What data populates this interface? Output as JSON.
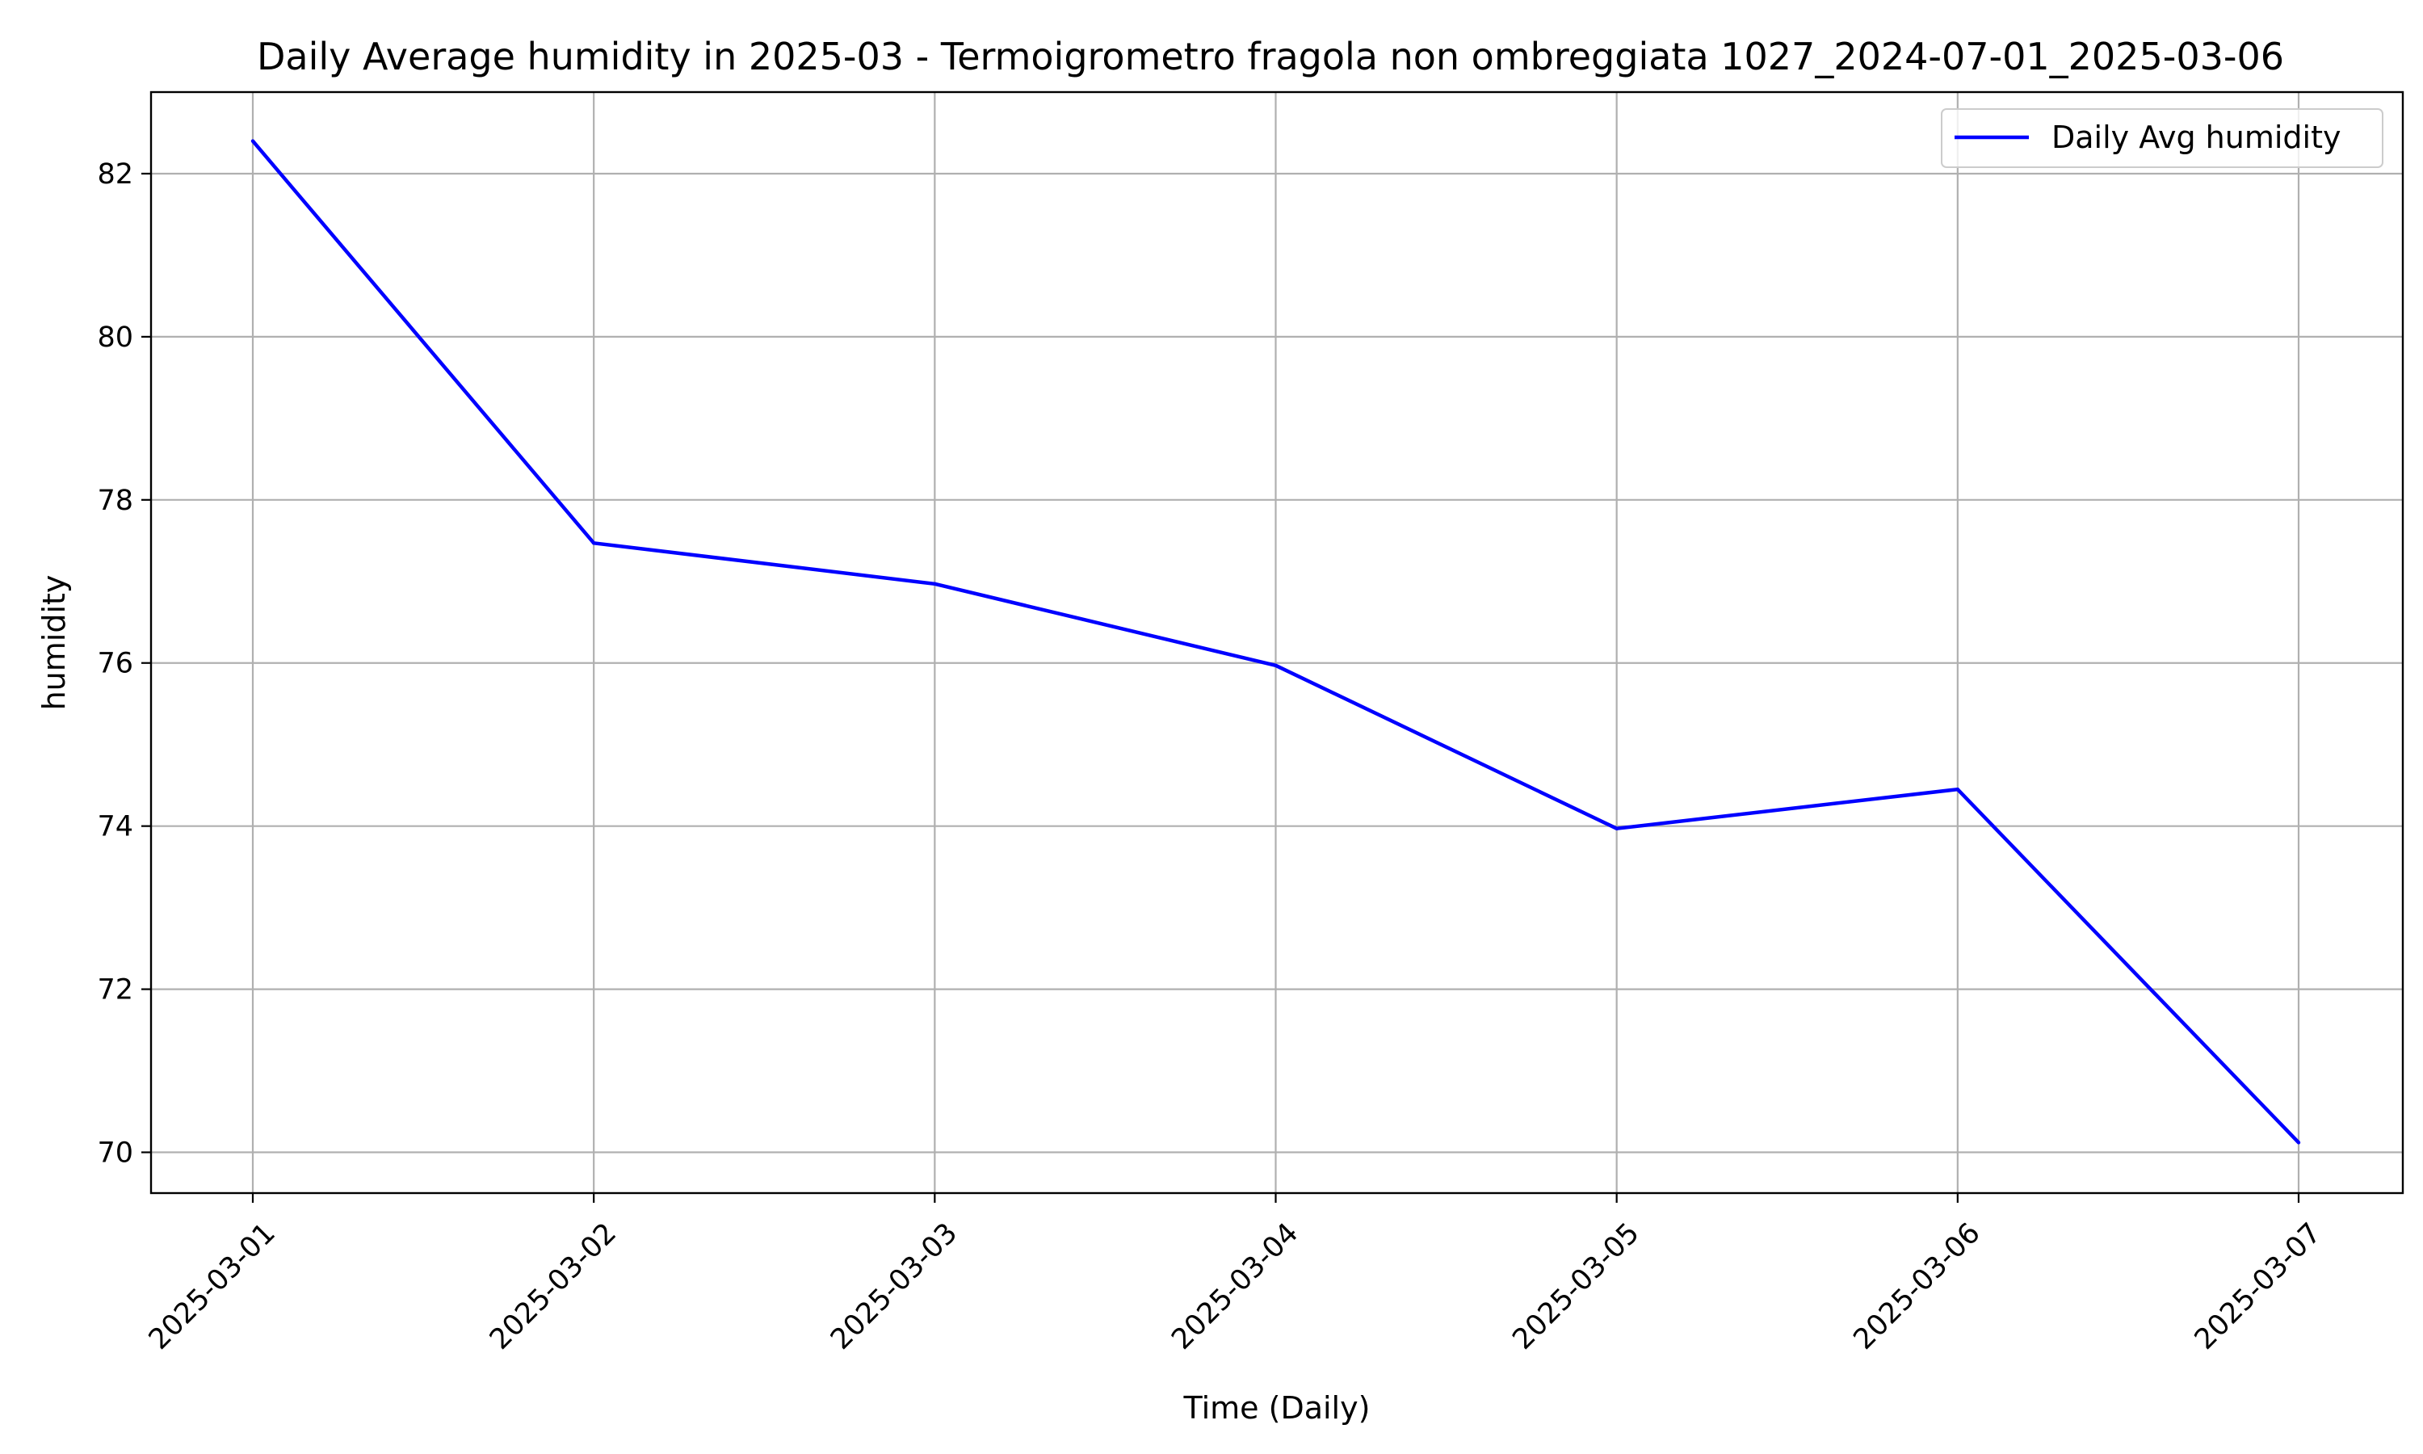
{
  "chart_data": {
    "type": "line",
    "title": "Daily Average humidity in 2025-03 - Termoigrometro fragola non ombreggiata 1027_2024-07-01_2025-03-06",
    "xlabel": "Time (Daily)",
    "ylabel": "humidity",
    "x": [
      "2025-03-01",
      "2025-03-02",
      "2025-03-03",
      "2025-03-04",
      "2025-03-05",
      "2025-03-06",
      "2025-03-07"
    ],
    "series": [
      {
        "name": "Daily Avg humidity",
        "color": "#0000ff",
        "values": [
          82.4,
          77.47,
          76.97,
          75.97,
          73.97,
          74.45,
          70.12
        ]
      }
    ],
    "ylim": [
      69.5,
      83.0
    ],
    "yticks": [
      70,
      72,
      74,
      76,
      78,
      80,
      82
    ],
    "grid": true,
    "legend_position": "upper right"
  }
}
